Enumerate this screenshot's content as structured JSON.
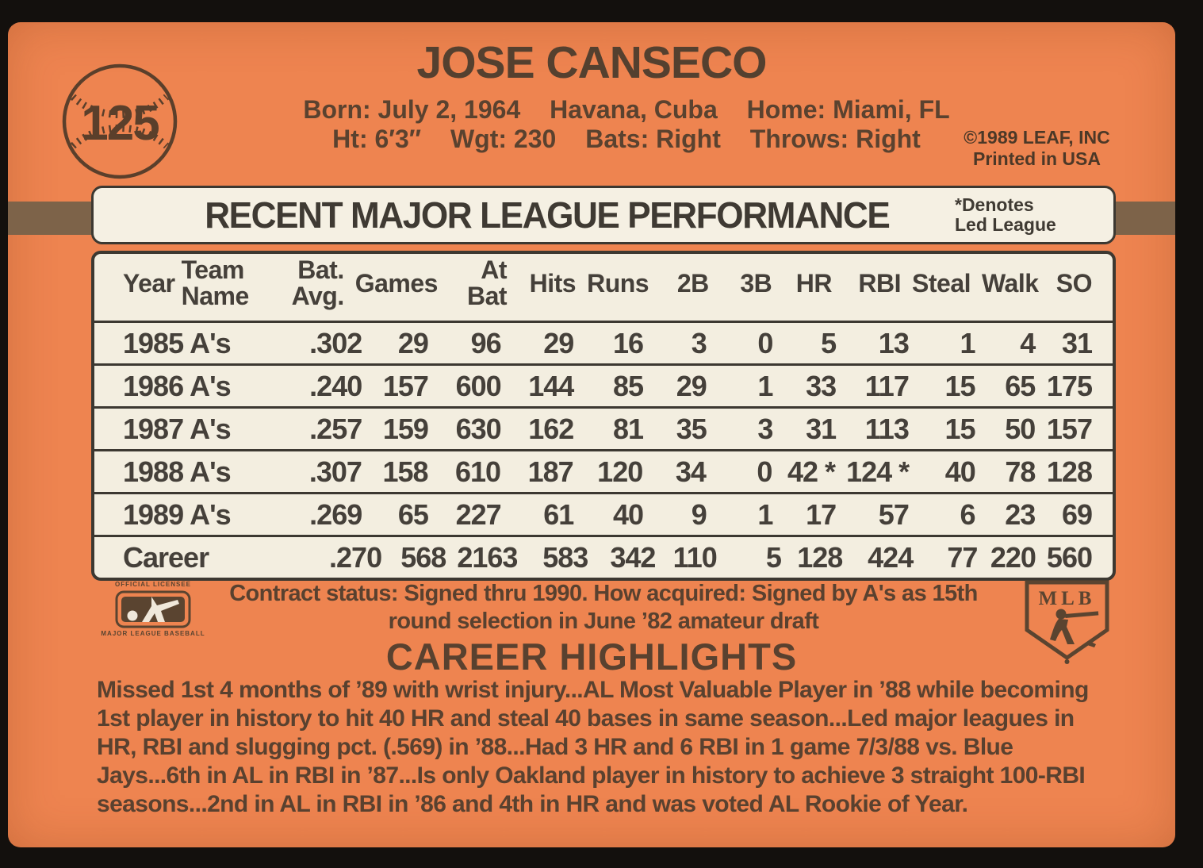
{
  "colors": {
    "card_orange": "#ee8450",
    "ink_brown": "#59412f",
    "band_brown": "#7d6349",
    "panel_cream": "#f3eee0",
    "table_ink": "#45403a",
    "photo_black": "#13100d"
  },
  "header": {
    "card_number": "125",
    "player_name": "JOSE CANSECO",
    "bio_line1": [
      "Born: July 2, 1964",
      "Havana, Cuba",
      "Home: Miami, FL"
    ],
    "bio_line2": [
      "Ht: 6′3″",
      "Wgt: 230",
      "Bats: Right",
      "Throws: Right"
    ],
    "copyright_line1": "©1989 LEAF, INC",
    "copyright_line2": "Printed in USA"
  },
  "stats_table": {
    "title": "RECENT MAJOR LEAGUE PERFORMANCE",
    "note_line1": "*Denotes",
    "note_line2": "Led League",
    "columns": [
      [
        "",
        "Year"
      ],
      [
        "Team",
        "Name"
      ],
      [
        "Bat.",
        "Avg."
      ],
      [
        "",
        "Games"
      ],
      [
        "At",
        "Bat"
      ],
      [
        "",
        "Hits"
      ],
      [
        "",
        "Runs"
      ],
      [
        "",
        "2B"
      ],
      [
        "",
        "3B"
      ],
      [
        "",
        "HR"
      ],
      [
        "",
        "RBI"
      ],
      [
        "",
        "Steal"
      ],
      [
        "",
        "Walk"
      ],
      [
        "",
        "SO"
      ]
    ],
    "rows": [
      [
        "1985",
        "A's",
        ".302",
        "29",
        "96",
        "29",
        "16",
        "3",
        "0",
        "5",
        "13",
        "1",
        "4",
        "31"
      ],
      [
        "1986",
        "A's",
        ".240",
        "157",
        "600",
        "144",
        "85",
        "29",
        "1",
        "33",
        "117",
        "15",
        "65",
        "175"
      ],
      [
        "1987",
        "A's",
        ".257",
        "159",
        "630",
        "162",
        "81",
        "35",
        "3",
        "31",
        "113",
        "15",
        "50",
        "157"
      ],
      [
        "1988",
        "A's",
        ".307",
        "158",
        "610",
        "187",
        "120",
        "34",
        "0",
        "42 *",
        "124 *",
        "40",
        "78",
        "128"
      ],
      [
        "1989",
        "A's",
        ".269",
        "65",
        "227",
        "61",
        "40",
        "9",
        "1",
        "17",
        "57",
        "6",
        "23",
        "69"
      ],
      [
        "Career",
        "",
        ".270",
        "568",
        "2163",
        "583",
        "342",
        "110",
        "5",
        "128",
        "424",
        "77",
        "220",
        "560"
      ]
    ]
  },
  "footer": {
    "licensee_line1": "OFFICIAL LICENSEE",
    "licensee_line2": "MAJOR LEAGUE BASEBALL",
    "mlb_shield_label": "MLB",
    "contract_line1": "Contract status: Signed thru 1990. How acquired: Signed by A's as 15th",
    "contract_line2": "round selection in June ’82 amateur draft",
    "highlights_title": "CAREER HIGHLIGHTS",
    "highlights_text": "Missed 1st 4 months of ’89 with wrist injury...AL Most Valuable Player in ’88 while becoming 1st player in history to hit 40 HR and steal 40 bases in same season...Led major leagues in HR, RBI and slugging pct. (.569) in ’88...Had 3 HR and 6 RBI in 1 game 7/3/88 vs. Blue Jays...6th in AL in RBI in ’87...Is only Oakland player in history to achieve 3 straight 100-RBI seasons...2nd in AL in RBI in ’86 and 4th in HR and was voted AL Rookie of Year."
  }
}
